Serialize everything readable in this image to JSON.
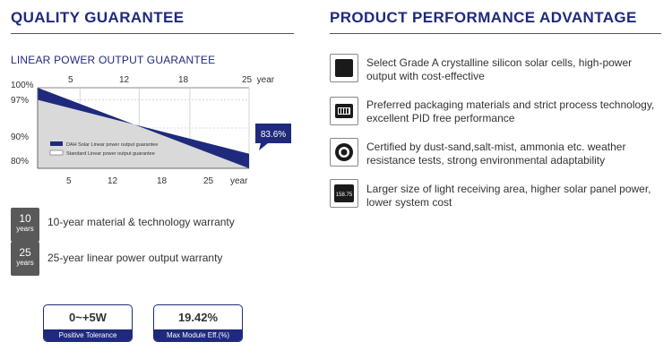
{
  "left": {
    "heading": "QUALITY GUARANTEE",
    "subtitle": "LINEAR POWER OUTPUT GUARANTEE"
  },
  "chart_data": {
    "type": "area",
    "y_ticks": [
      "100%",
      "97%",
      "90%",
      "80%"
    ],
    "x_ticks_top": [
      "5",
      "12",
      "18",
      "25  year"
    ],
    "x_ticks_bottom": [
      "5",
      "12",
      "18",
      "25",
      "year"
    ],
    "x": [
      0,
      25
    ],
    "ylim": [
      80,
      100
    ],
    "series": [
      {
        "name": "DAH Solar Linear power output guarantee",
        "values": [
          97,
          83.6
        ],
        "color": "#1f2a7c"
      },
      {
        "name": "Standard Linear power output guarantee",
        "values": [
          100,
          80
        ],
        "color": "#d9d9d9"
      }
    ],
    "annotation": "83.6%",
    "grid": true,
    "legend": "left-middle"
  },
  "warranties": [
    {
      "number": "10",
      "unit": "years",
      "text": "10-year material & technology warranty"
    },
    {
      "number": "25",
      "unit": "years",
      "text": "25-year linear power output warranty"
    }
  ],
  "badges": [
    {
      "value": "0~+5W",
      "label": "Positive Tolerance"
    },
    {
      "value": "19.42%",
      "label": "Max Module Eff.(%)"
    }
  ],
  "right": {
    "heading": "PRODUCT PERFORMANCE ADVANTAGE",
    "features": [
      {
        "icon": "solar-cell-icon",
        "text": "Select Grade A crystalline silicon solar cells, high-power output with cost-effective"
      },
      {
        "icon": "package-icon",
        "text": "Preferred packaging materials and strict process technology, excellent PID free performance"
      },
      {
        "icon": "shield-ring-icon",
        "text": "Certified by dust-sand,salt-mist, ammonia etc. weather resistance tests, strong environmental adaptability"
      },
      {
        "icon": "panel-size-icon",
        "icon_label": "158.75",
        "text": "Larger size of light receiving area, higher solar panel power, lower system cost"
      }
    ]
  },
  "colors": {
    "brand": "#1f2a7c",
    "standard_area": "#d9d9d9",
    "badge_gray": "#595959"
  }
}
